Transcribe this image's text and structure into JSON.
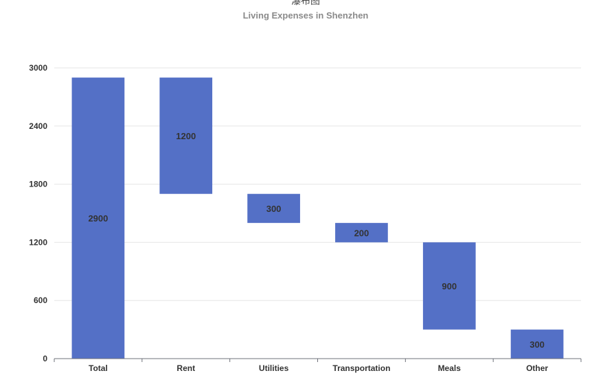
{
  "chart_data": {
    "type": "bar",
    "title": "瀑布图",
    "subtitle": "Living Expenses in Shenzhen",
    "categories": [
      "Total",
      "Rent",
      "Utilities",
      "Transportation",
      "Meals",
      "Other"
    ],
    "values": [
      2900,
      1200,
      300,
      200,
      900,
      300
    ],
    "bases": [
      0,
      1700,
      1400,
      1200,
      300,
      0
    ],
    "ylim": [
      0,
      3000
    ],
    "yticks": [
      0,
      600,
      1200,
      1800,
      2400,
      3000
    ],
    "grid": true,
    "bar_color": "#5470c6"
  }
}
